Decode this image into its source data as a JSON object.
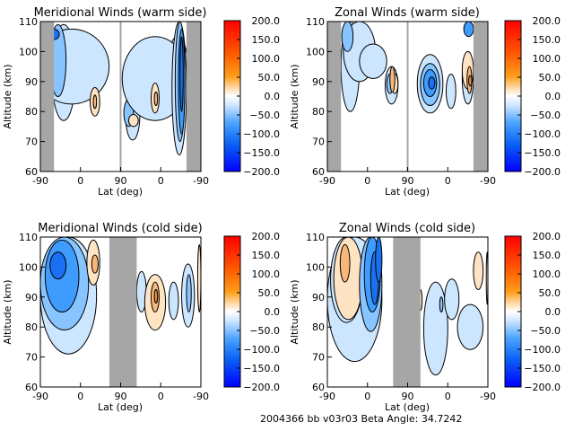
{
  "footer": "2004366 bb v03r03   Beta Angle: 34.7242",
  "chart_data": [
    {
      "type": "heatmap",
      "title": "Meridional Winds (warm side)",
      "xlabel": "Lat (deg)",
      "ylabel": "Altitude (km)",
      "xticks": [
        "-90",
        "0",
        "90",
        "0",
        "-90"
      ],
      "yticks": [
        "60",
        "70",
        "80",
        "90",
        "100",
        "110"
      ],
      "ylim": [
        60,
        110
      ],
      "colorbar": {
        "range": [
          -200,
          200
        ],
        "ticks": [
          "200.0",
          "150.0",
          "100.0",
          "50.0",
          "0.0",
          "-50.0",
          "-100.0",
          "-150.0",
          "-200.0"
        ]
      },
      "no_data_regions": [
        "left edge",
        "right edge"
      ]
    },
    {
      "type": "heatmap",
      "title": "Zonal Winds (warm side)",
      "xlabel": "Lat (deg)",
      "ylabel": "Altitude (km)",
      "xticks": [
        "-90",
        "0",
        "90",
        "0",
        "-90"
      ],
      "yticks": [
        "60",
        "70",
        "80",
        "90",
        "100",
        "110"
      ],
      "ylim": [
        60,
        110
      ],
      "colorbar": {
        "range": [
          -200,
          200
        ],
        "ticks": [
          "200.0",
          "150.0",
          "100.0",
          "50.0",
          "0.0",
          "-50.0",
          "-100.0",
          "-150.0",
          "-200.0"
        ]
      },
      "no_data_regions": [
        "left edge",
        "right edge"
      ]
    },
    {
      "type": "heatmap",
      "title": "Meridional Winds (cold side)",
      "xlabel": "Lat (deg)",
      "ylabel": "Altitude (km)",
      "xticks": [
        "-90",
        "0",
        "90",
        "0",
        "-90"
      ],
      "yticks": [
        "60",
        "70",
        "80",
        "90",
        "100",
        "110"
      ],
      "ylim": [
        60,
        110
      ],
      "colorbar": {
        "range": [
          -200,
          200
        ],
        "ticks": [
          "200.0",
          "150.0",
          "100.0",
          "50.0",
          "0.0",
          "-50.0",
          "-100.0",
          "-150.0",
          "-200.0"
        ]
      },
      "no_data_regions": [
        "around 90"
      ]
    },
    {
      "type": "heatmap",
      "title": "Zonal Winds (cold side)",
      "xlabel": "Lat (deg)",
      "ylabel": "Altitude (km)",
      "xticks": [
        "-90",
        "0",
        "90",
        "0",
        "-90"
      ],
      "yticks": [
        "60",
        "70",
        "80",
        "90",
        "100",
        "110"
      ],
      "ylim": [
        60,
        110
      ],
      "colorbar": {
        "range": [
          -200,
          200
        ],
        "ticks": [
          "200.0",
          "150.0",
          "100.0",
          "50.0",
          "0.0",
          "-50.0",
          "-100.0",
          "-150.0",
          "-200.0"
        ]
      },
      "no_data_regions": [
        "around 90"
      ]
    }
  ],
  "colors": {
    "nodata": "#a6a6a6",
    "neg1": "#cce6ff",
    "neg2": "#88c4ff",
    "neg3": "#3f9cff",
    "neg4": "#1a70f0",
    "pos1": "#ffe4c4",
    "pos2": "#f7b77a",
    "pos3": "#f08b2e"
  }
}
